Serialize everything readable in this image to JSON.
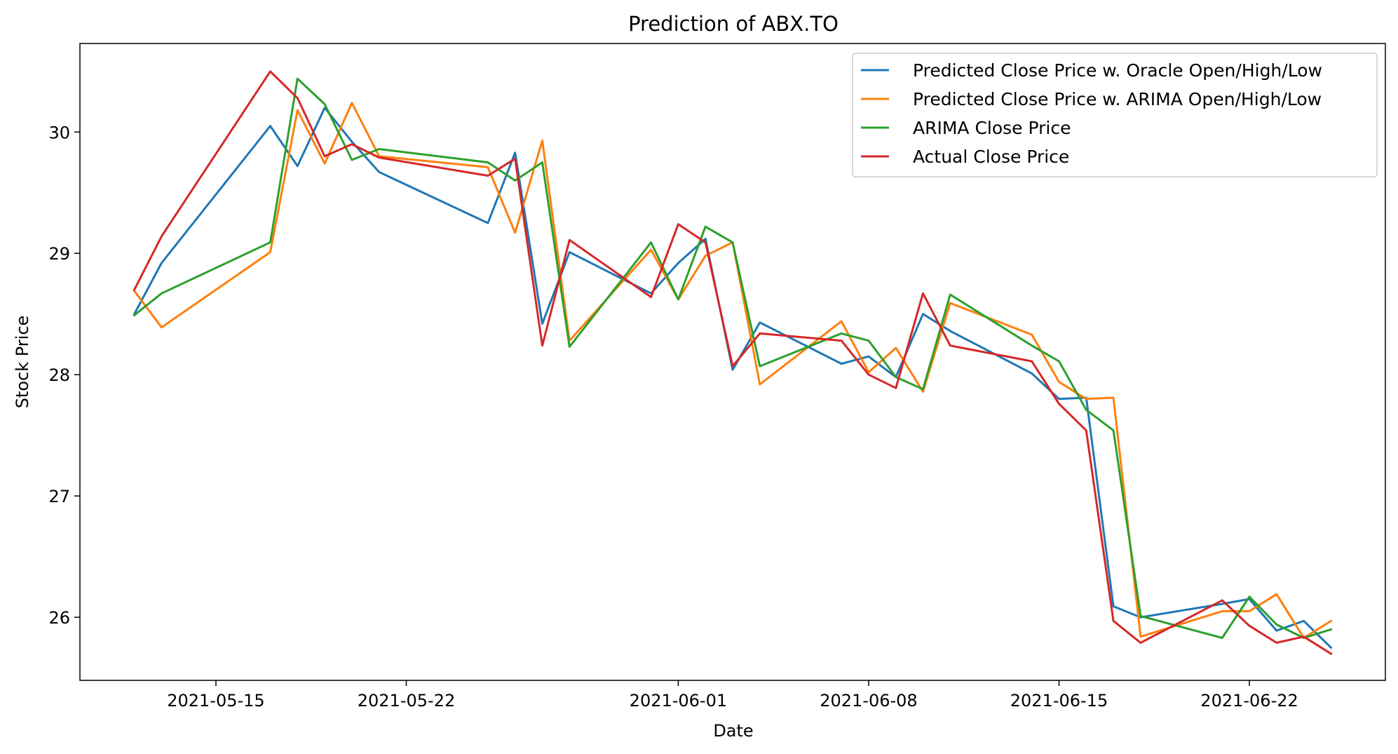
{
  "chart_data": {
    "type": "line",
    "title": "Prediction of ABX.TO",
    "xlabel": "Date",
    "ylabel": "Stock Price",
    "xlim": [
      "2021-05-10",
      "2021-06-27"
    ],
    "ylim": [
      25.48,
      30.73
    ],
    "x_ticks": [
      "2021-05-15",
      "2021-05-22",
      "2021-06-01",
      "2021-06-08",
      "2021-06-15",
      "2021-06-22"
    ],
    "y_ticks": [
      26,
      27,
      28,
      29,
      30
    ],
    "grid": false,
    "legend_position": "top-right",
    "dates": [
      "2021-05-12",
      "2021-05-13",
      "2021-05-17",
      "2021-05-18",
      "2021-05-19",
      "2021-05-20",
      "2021-05-21",
      "2021-05-25",
      "2021-05-26",
      "2021-05-27",
      "2021-05-28",
      "2021-05-31",
      "2021-06-01",
      "2021-06-02",
      "2021-06-03",
      "2021-06-04",
      "2021-06-07",
      "2021-06-08",
      "2021-06-09",
      "2021-06-10",
      "2021-06-11",
      "2021-06-14",
      "2021-06-15",
      "2021-06-16",
      "2021-06-17",
      "2021-06-18",
      "2021-06-21",
      "2021-06-22",
      "2021-06-23",
      "2021-06-24",
      "2021-06-25"
    ],
    "series": [
      {
        "name": "Predicted Close Price w. Oracle Open/High/Low",
        "color": "#1f77b4",
        "values": [
          28.5,
          28.92,
          30.05,
          29.72,
          30.2,
          29.92,
          29.67,
          29.25,
          29.83,
          28.42,
          29.01,
          28.67,
          28.92,
          29.12,
          28.04,
          28.43,
          28.09,
          28.15,
          27.98,
          28.5,
          28.36,
          28.01,
          27.8,
          27.81,
          26.09,
          26.0,
          26.11,
          26.15,
          25.89,
          25.97,
          25.75
        ]
      },
      {
        "name": "Predicted Close Price w. ARIMA Open/High/Low",
        "color": "#ff7f0e",
        "values": [
          28.69,
          28.39,
          29.01,
          30.18,
          29.74,
          30.24,
          29.8,
          29.71,
          29.17,
          29.93,
          28.28,
          29.03,
          28.62,
          28.98,
          29.09,
          27.92,
          28.44,
          28.02,
          28.22,
          27.86,
          28.59,
          28.33,
          27.94,
          27.8,
          27.81,
          25.84,
          26.05,
          26.05,
          26.19,
          25.83,
          25.97
        ]
      },
      {
        "name": "ARIMA Close Price",
        "color": "#2ca02c",
        "values": [
          28.49,
          28.67,
          29.09,
          30.44,
          30.23,
          29.77,
          29.86,
          29.75,
          29.6,
          29.75,
          28.23,
          29.09,
          28.62,
          29.22,
          29.09,
          28.07,
          28.34,
          28.28,
          27.98,
          27.88,
          28.66,
          28.24,
          28.11,
          27.71,
          27.54,
          26.01,
          25.83,
          26.17,
          25.94,
          25.83,
          25.9
        ]
      },
      {
        "name": "Actual Close Price",
        "color": "#d62728",
        "values": [
          28.7,
          29.14,
          30.5,
          30.28,
          29.8,
          29.9,
          29.79,
          29.64,
          29.78,
          28.24,
          29.11,
          28.64,
          29.24,
          29.09,
          28.07,
          28.34,
          28.28,
          28.0,
          27.89,
          28.67,
          28.24,
          28.11,
          27.76,
          27.54,
          25.97,
          25.79,
          26.14,
          25.93,
          25.79,
          25.84,
          25.7
        ]
      }
    ]
  }
}
